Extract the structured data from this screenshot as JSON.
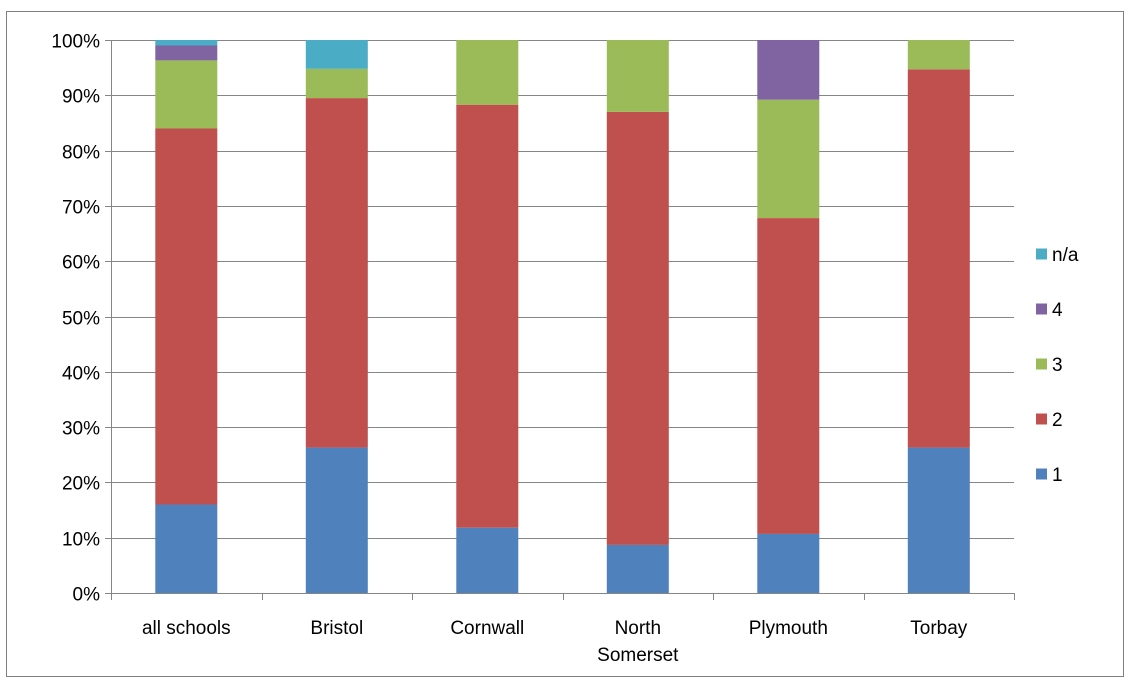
{
  "chart_data": {
    "type": "bar",
    "stacked": true,
    "percent": true,
    "categories": [
      [
        "all schools"
      ],
      [
        "Bristol"
      ],
      [
        "Cornwall"
      ],
      [
        "North",
        "Somerset"
      ],
      [
        "Plymouth"
      ],
      [
        "Torbay"
      ]
    ],
    "series": [
      {
        "name": "1",
        "color": "#4f81bd",
        "values": [
          16,
          26.3,
          11.8,
          8.7,
          10.7,
          26.3
        ]
      },
      {
        "name": "2",
        "color": "#c0504d",
        "values": [
          68,
          63.2,
          76.5,
          78.3,
          57.1,
          68.4
        ]
      },
      {
        "name": "3",
        "color": "#9bbb59",
        "values": [
          12.3,
          5.3,
          11.7,
          13,
          21.4,
          5.3
        ]
      },
      {
        "name": "4",
        "color": "#8064a2",
        "values": [
          2.7,
          0,
          0,
          0,
          10.8,
          0
        ]
      },
      {
        "name": "n/a",
        "color": "#4bacc6",
        "values": [
          1,
          5.2,
          0,
          0,
          0,
          0
        ]
      }
    ],
    "ylim": [
      0,
      100
    ],
    "yticks": [
      "0%",
      "10%",
      "20%",
      "30%",
      "40%",
      "50%",
      "60%",
      "70%",
      "80%",
      "90%",
      "100%"
    ],
    "grid": true,
    "legend_position": "right",
    "legend_order": [
      "n/a",
      "4",
      "3",
      "2",
      "1"
    ]
  }
}
